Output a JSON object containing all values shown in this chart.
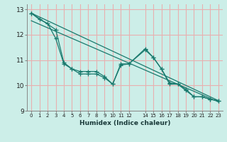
{
  "xlabel": "Humidex (Indice chaleur)",
  "bg_color": "#cceee8",
  "grid_color": "#e8b0b0",
  "line_color": "#1a7a6e",
  "xlim": [
    -0.5,
    23.5
  ],
  "ylim": [
    9,
    13.2
  ],
  "yticks": [
    9,
    10,
    11,
    12,
    13
  ],
  "xticks": [
    0,
    1,
    2,
    3,
    4,
    5,
    6,
    7,
    8,
    9,
    10,
    11,
    12,
    14,
    15,
    16,
    17,
    18,
    19,
    20,
    21,
    22,
    23
  ],
  "jagged1_x": [
    0,
    1,
    2,
    3,
    4,
    5,
    6,
    7,
    8,
    9,
    10,
    11,
    12,
    14,
    15,
    16,
    17,
    18,
    19,
    20,
    21,
    22,
    23
  ],
  "jagged1_y": [
    12.85,
    12.6,
    12.45,
    11.85,
    10.85,
    10.65,
    10.55,
    10.55,
    10.55,
    10.35,
    10.05,
    10.8,
    10.85,
    11.45,
    11.1,
    10.65,
    10.1,
    10.05,
    9.8,
    9.55,
    9.55,
    9.45,
    9.4
  ],
  "jagged2_x": [
    0,
    3,
    4,
    5,
    6,
    7,
    8,
    9,
    10,
    11,
    12,
    14,
    15,
    16,
    17,
    18,
    19,
    20,
    21,
    22,
    23
  ],
  "jagged2_y": [
    12.85,
    12.2,
    10.9,
    10.65,
    10.45,
    10.45,
    10.45,
    10.3,
    10.05,
    10.85,
    10.85,
    11.4,
    11.1,
    10.65,
    10.05,
    10.05,
    9.85,
    9.55,
    9.55,
    9.45,
    9.4
  ],
  "trend1_start": 12.85,
  "trend1_end": 9.4,
  "trend2_start": 12.55,
  "trend2_end": 9.35
}
